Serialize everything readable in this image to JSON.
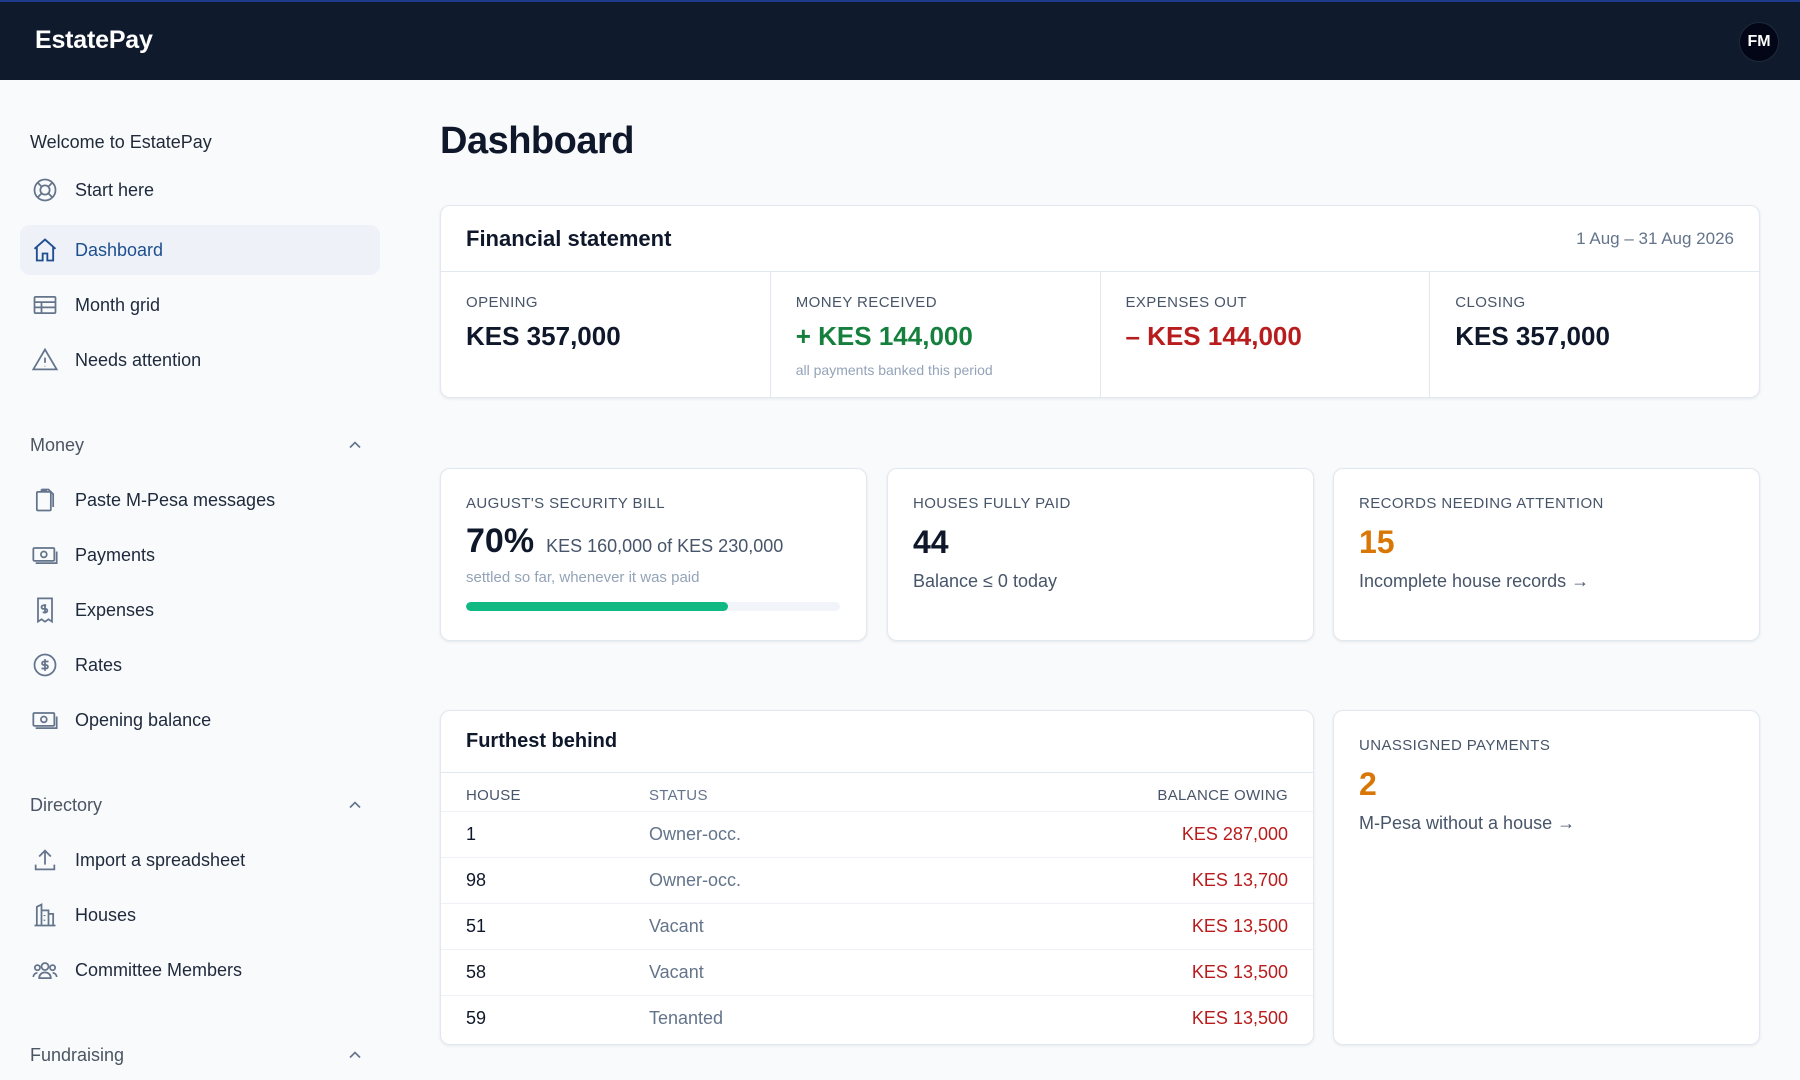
{
  "app": {
    "brand": "EstatePay",
    "avatar_initials": "FM"
  },
  "sidebar": {
    "welcome": "Welcome to EstatePay",
    "top_items": [
      {
        "label": "Start here",
        "icon": "lifebuoy-icon"
      },
      {
        "label": "Dashboard",
        "icon": "home-icon",
        "active": true
      },
      {
        "label": "Month grid",
        "icon": "table-icon"
      },
      {
        "label": "Needs attention",
        "icon": "warning-icon"
      }
    ],
    "sections": {
      "money": {
        "title": "Money",
        "items": [
          {
            "label": "Paste M-Pesa messages",
            "icon": "clipboard-icon"
          },
          {
            "label": "Payments",
            "icon": "cash-icon"
          },
          {
            "label": "Expenses",
            "icon": "receipt-icon"
          },
          {
            "label": "Rates",
            "icon": "dollar-icon"
          },
          {
            "label": "Opening balance",
            "icon": "cash-icon"
          }
        ]
      },
      "directory": {
        "title": "Directory",
        "items": [
          {
            "label": "Import a spreadsheet",
            "icon": "upload-icon"
          },
          {
            "label": "Houses",
            "icon": "buildings-icon"
          },
          {
            "label": "Committee Members",
            "icon": "users-icon"
          }
        ]
      },
      "fundraising": {
        "title": "Fundraising"
      }
    }
  },
  "page": {
    "title": "Dashboard"
  },
  "financial_statement": {
    "title": "Financial statement",
    "period": "1 Aug – 31 Aug 2026",
    "opening": {
      "label": "OPENING",
      "value": "KES 357,000"
    },
    "received": {
      "label": "MONEY RECEIVED",
      "value": "+ KES 144,000",
      "note": "all payments banked this period"
    },
    "expenses": {
      "label": "EXPENSES OUT",
      "value": "– KES 144,000"
    },
    "closing": {
      "label": "CLOSING",
      "value": "KES 357,000"
    },
    "colors": {
      "positive": "#15803d",
      "negative": "#b91c1c"
    }
  },
  "security_bill": {
    "label": "AUGUST'S SECURITY BILL",
    "percent": "70%",
    "detail": "KES 160,000 of KES 230,000",
    "note": "settled so far, whenever it was paid",
    "progress": 0.7,
    "bar_color": "#10b981"
  },
  "houses_paid": {
    "label": "HOUSES FULLY PAID",
    "value": "44",
    "sub": "Balance ≤ 0 today"
  },
  "records_attention": {
    "label": "RECORDS NEEDING ATTENTION",
    "value": "15",
    "link": "Incomplete house records →",
    "accent": "#d97706"
  },
  "furthest_behind": {
    "title": "Furthest behind",
    "columns": {
      "house": "HOUSE",
      "status": "STATUS",
      "balance": "BALANCE OWING"
    },
    "rows": [
      {
        "house": "1",
        "status": "Owner-occ.",
        "balance": "KES 287,000"
      },
      {
        "house": "98",
        "status": "Owner-occ.",
        "balance": "KES 13,700"
      },
      {
        "house": "51",
        "status": "Vacant",
        "balance": "KES 13,500"
      },
      {
        "house": "58",
        "status": "Vacant",
        "balance": "KES 13,500"
      },
      {
        "house": "59",
        "status": "Tenanted",
        "balance": "KES 13,500"
      }
    ]
  },
  "unassigned": {
    "label": "UNASSIGNED PAYMENTS",
    "value": "2",
    "link": "M-Pesa without a house →"
  }
}
